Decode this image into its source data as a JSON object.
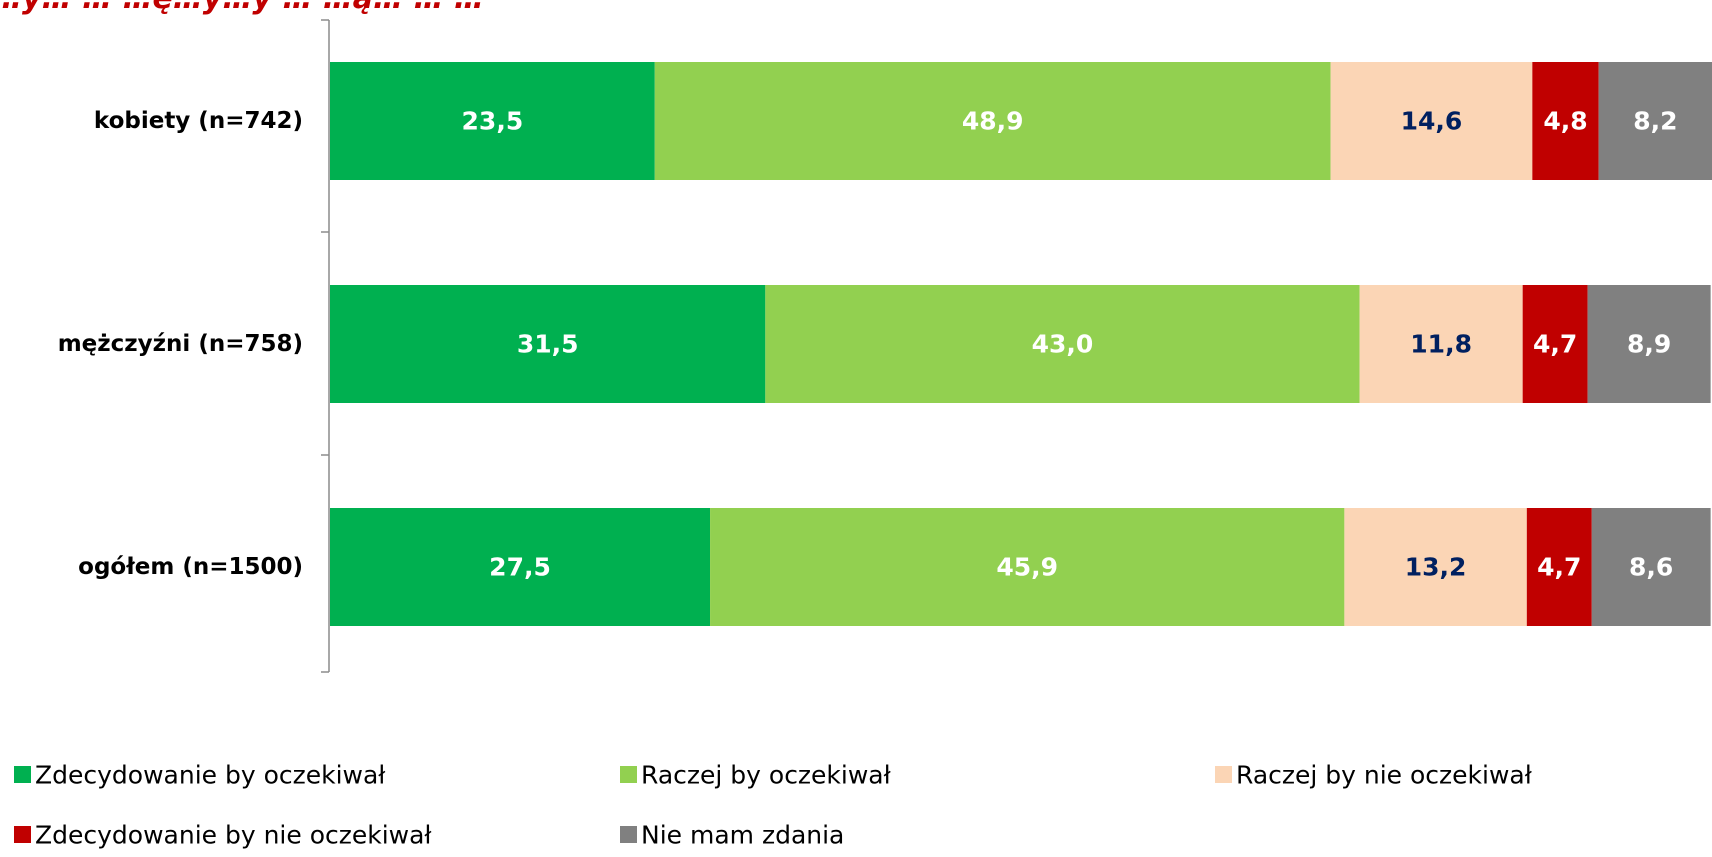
{
  "chart_data": {
    "type": "bar",
    "orientation": "horizontal",
    "stacked": true,
    "title": "…y… … …ę…y…y … …ą… … …",
    "categories": [
      "kobiety (n=742)",
      "mężczyźni (n=758)",
      "ogółem (n=1500)"
    ],
    "series": [
      {
        "name": "Zdecydowanie by oczekiwał",
        "color": "#00b050",
        "label_color": "#ffffff",
        "values": [
          23.5,
          31.5,
          27.5
        ],
        "labels": [
          "23,5",
          "31,5",
          "27,5"
        ]
      },
      {
        "name": "Raczej by oczekiwał",
        "color": "#92d050",
        "label_color": "#ffffff",
        "values": [
          48.9,
          43.0,
          45.9
        ],
        "labels": [
          "48,9",
          "43,0",
          "45,9"
        ]
      },
      {
        "name": "Raczej by nie oczekiwał",
        "color": "#fbd5b5",
        "label_color": "#002060",
        "values": [
          14.6,
          11.8,
          13.2
        ],
        "labels": [
          "14,6",
          "11,8",
          "13,2"
        ]
      },
      {
        "name": "Zdecydowanie by nie oczekiwał",
        "color": "#c00000",
        "label_color": "#ffffff",
        "values": [
          4.8,
          4.7,
          4.7
        ],
        "labels": [
          "4,8",
          "4,7",
          "4,7"
        ]
      },
      {
        "name": "Nie mam zdania",
        "color": "#808080",
        "label_color": "#ffffff",
        "values": [
          8.2,
          8.9,
          8.6
        ],
        "labels": [
          "8,2",
          "8,9",
          "8,6"
        ]
      }
    ],
    "xlim": [
      0,
      100
    ],
    "grid": false,
    "legend_position": "bottom"
  }
}
